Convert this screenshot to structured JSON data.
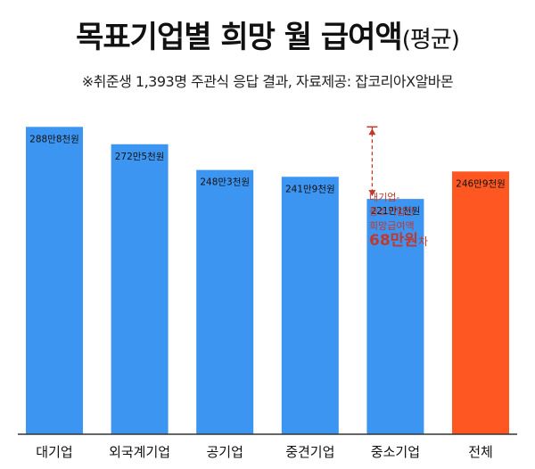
{
  "title": "목표기업별 희망 월 급여액",
  "title_suffix": "(평균)",
  "subtitle": "※취준생 1,393명 주관식 응답 결과, 자료제공: 잡코리아X알바몬",
  "colors": {
    "bar": "#3d95f2",
    "highlight": "#ff5722",
    "annotation": "#c0392b"
  },
  "annotation": {
    "line1": "대기업-",
    "line2": "중소기업간",
    "line3": "희망급여액",
    "amount": "68만원",
    "suffix": "차"
  },
  "chart_data": {
    "type": "bar",
    "categories": [
      "대기업",
      "외국계기업",
      "공기업",
      "중견기업",
      "중소기업",
      "전체"
    ],
    "values": [
      2888,
      2725,
      2483,
      2419,
      2211,
      2469
    ],
    "value_unit": "천원",
    "data_labels": [
      "288만8천원",
      "272만5천원",
      "248만3천원",
      "241만9천원",
      "221만1천원",
      "246만9천원"
    ],
    "highlight_category": "전체",
    "ylim": [
      0,
      3100
    ]
  }
}
